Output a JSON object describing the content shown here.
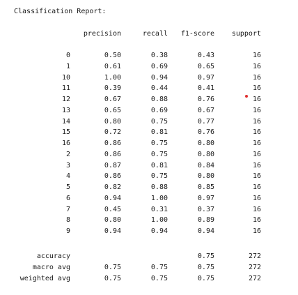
{
  "report_title": "Classification Report:",
  "headers": {
    "precision": "precision",
    "recall": "recall",
    "f1": "f1-score",
    "support": "support"
  },
  "class_rows": [
    {
      "label": "0",
      "precision": "0.50",
      "recall": "0.38",
      "f1": "0.43",
      "support": "16"
    },
    {
      "label": "1",
      "precision": "0.61",
      "recall": "0.69",
      "f1": "0.65",
      "support": "16"
    },
    {
      "label": "10",
      "precision": "1.00",
      "recall": "0.94",
      "f1": "0.97",
      "support": "16"
    },
    {
      "label": "11",
      "precision": "0.39",
      "recall": "0.44",
      "f1": "0.41",
      "support": "16"
    },
    {
      "label": "12",
      "precision": "0.67",
      "recall": "0.88",
      "f1": "0.76",
      "support": "16"
    },
    {
      "label": "13",
      "precision": "0.65",
      "recall": "0.69",
      "f1": "0.67",
      "support": "16"
    },
    {
      "label": "14",
      "precision": "0.80",
      "recall": "0.75",
      "f1": "0.77",
      "support": "16"
    },
    {
      "label": "15",
      "precision": "0.72",
      "recall": "0.81",
      "f1": "0.76",
      "support": "16"
    },
    {
      "label": "16",
      "precision": "0.86",
      "recall": "0.75",
      "f1": "0.80",
      "support": "16"
    },
    {
      "label": "2",
      "precision": "0.86",
      "recall": "0.75",
      "f1": "0.80",
      "support": "16"
    },
    {
      "label": "3",
      "precision": "0.87",
      "recall": "0.81",
      "f1": "0.84",
      "support": "16"
    },
    {
      "label": "4",
      "precision": "0.86",
      "recall": "0.75",
      "f1": "0.80",
      "support": "16"
    },
    {
      "label": "5",
      "precision": "0.82",
      "recall": "0.88",
      "f1": "0.85",
      "support": "16"
    },
    {
      "label": "6",
      "precision": "0.94",
      "recall": "1.00",
      "f1": "0.97",
      "support": "16"
    },
    {
      "label": "7",
      "precision": "0.45",
      "recall": "0.31",
      "f1": "0.37",
      "support": "16"
    },
    {
      "label": "8",
      "precision": "0.80",
      "recall": "1.00",
      "f1": "0.89",
      "support": "16"
    },
    {
      "label": "9",
      "precision": "0.94",
      "recall": "0.94",
      "f1": "0.94",
      "support": "16"
    }
  ],
  "summary_rows": [
    {
      "label": "accuracy",
      "precision": "",
      "recall": "",
      "f1": "0.75",
      "support": "272"
    },
    {
      "label": "macro avg",
      "precision": "0.75",
      "recall": "0.75",
      "f1": "0.75",
      "support": "272"
    },
    {
      "label": "weighted avg",
      "precision": "0.75",
      "recall": "0.75",
      "f1": "0.75",
      "support": "272"
    }
  ],
  "colors": {
    "text": "#1a1a1a",
    "background": "#ffffff",
    "marker_dot": "#e03030"
  }
}
